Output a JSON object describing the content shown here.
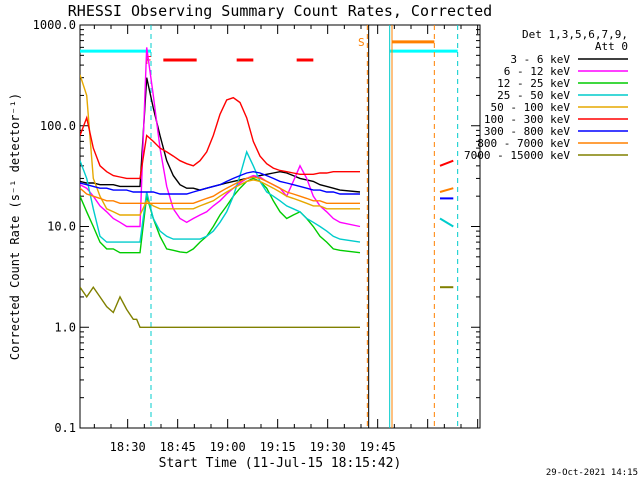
{
  "chart_data": {
    "type": "line",
    "title": "RHESSI Observing Summary Count Rates, Corrected",
    "xlabel": "Start Time (11-Jul-15 18:15:42)",
    "ylabel": "Corrected Count Rate (s⁻¹ detector⁻¹)",
    "yscale": "log",
    "ylim": [
      0.1,
      1000
    ],
    "xlim_minutes": [
      0,
      120
    ],
    "x_tick_labels": [
      "18:30",
      "18:45",
      "19:00",
      "19:15",
      "19:30",
      "19:45"
    ],
    "y_tick_labels": [
      "0.1",
      "1.0",
      "10.0",
      "100.0",
      "1000.0"
    ],
    "grid": false,
    "legend_header": [
      "Det 1,3,5,6,7,9,",
      "Att 0"
    ],
    "legend_position": "right",
    "footer_date": "29-Oct-2021 14:15",
    "flag_labels": {
      "flare": "F",
      "saa": "S"
    },
    "series": [
      {
        "name": "3 - 6 keV",
        "color": "#000000",
        "x": [
          0,
          2,
          4,
          6,
          8,
          10,
          12,
          14,
          16,
          17,
          18,
          20,
          22,
          24,
          26,
          28,
          30,
          32,
          34,
          36,
          38,
          40,
          42,
          44,
          46,
          48,
          50,
          52,
          54,
          56,
          58,
          60,
          62,
          64,
          66,
          68,
          70,
          72,
          74,
          76,
          78,
          84
        ],
        "y": [
          28,
          27,
          27,
          26,
          26,
          26,
          25,
          25,
          25,
          25,
          25,
          300,
          150,
          80,
          45,
          32,
          26,
          24,
          24,
          23,
          24,
          25,
          26,
          27,
          28,
          29,
          30,
          31,
          32,
          33,
          34,
          35,
          34,
          32,
          30,
          29,
          28,
          26,
          25,
          24,
          23,
          22
        ]
      },
      {
        "name": "6 - 12 keV",
        "color": "#ff00ff",
        "x": [
          0,
          2,
          4,
          6,
          8,
          10,
          12,
          14,
          16,
          17,
          18,
          20,
          22,
          24,
          26,
          28,
          30,
          32,
          34,
          36,
          38,
          40,
          42,
          44,
          46,
          48,
          50,
          52,
          54,
          56,
          58,
          60,
          62,
          64,
          66,
          68,
          70,
          72,
          74,
          76,
          78,
          84
        ],
        "y": [
          26,
          24,
          20,
          16,
          14,
          12,
          11,
          10,
          10,
          10,
          10,
          600,
          200,
          60,
          25,
          15,
          12,
          11,
          12,
          13,
          14,
          16,
          18,
          21,
          24,
          27,
          30,
          32,
          31,
          28,
          26,
          24,
          20,
          28,
          40,
          30,
          20,
          16,
          14,
          12,
          11,
          10
        ]
      },
      {
        "name": "12 - 25 keV",
        "color": "#00cc00",
        "x": [
          0,
          2,
          4,
          6,
          8,
          10,
          12,
          14,
          16,
          17,
          18,
          20,
          22,
          24,
          26,
          28,
          30,
          32,
          34,
          36,
          38,
          40,
          42,
          44,
          46,
          48,
          50,
          52,
          54,
          56,
          58,
          60,
          62,
          64,
          66,
          68,
          70,
          72,
          74,
          76,
          78,
          84
        ],
        "y": [
          20,
          14,
          10,
          7,
          6,
          6,
          5.5,
          5.5,
          5.5,
          5.5,
          5.5,
          20,
          12,
          8,
          6,
          5.8,
          5.6,
          5.5,
          6,
          7,
          8,
          10,
          13,
          16,
          20,
          24,
          28,
          30,
          28,
          24,
          18,
          14,
          12,
          13,
          14,
          12,
          10,
          8,
          7,
          6,
          5.8,
          5.5
        ]
      },
      {
        "name": "25 - 50 keV",
        "color": "#00cccc",
        "x": [
          0,
          2,
          4,
          6,
          8,
          10,
          12,
          14,
          16,
          17,
          18,
          20,
          22,
          24,
          26,
          28,
          30,
          32,
          34,
          36,
          38,
          40,
          42,
          44,
          46,
          48,
          50,
          52,
          54,
          56,
          58,
          60,
          62,
          64,
          66,
          68,
          70,
          72,
          74,
          76,
          78,
          84
        ],
        "y": [
          45,
          30,
          15,
          8,
          7,
          7,
          7,
          7,
          7,
          7,
          7,
          22,
          12,
          9,
          8,
          7.5,
          7.5,
          7.5,
          7.5,
          7.5,
          8,
          9,
          11,
          14,
          20,
          32,
          55,
          40,
          28,
          22,
          20,
          18,
          16,
          15,
          14,
          12,
          11,
          10,
          9,
          8,
          7.5,
          7
        ]
      },
      {
        "name": "50 - 100 keV",
        "color": "#e6a800",
        "x": [
          0,
          2,
          4,
          6,
          8,
          10,
          12,
          14,
          16,
          17,
          18,
          20,
          22,
          24,
          26,
          28,
          30,
          32,
          34,
          36,
          38,
          40,
          42,
          44,
          46,
          48,
          50,
          52,
          54,
          56,
          58,
          60,
          62,
          64,
          66,
          68,
          70,
          72,
          74,
          76,
          78,
          84
        ],
        "y": [
          320,
          200,
          30,
          20,
          15,
          14,
          13,
          13,
          13,
          13,
          13,
          18,
          16,
          15,
          15,
          15,
          15,
          15,
          15,
          16,
          17,
          18,
          20,
          22,
          24,
          26,
          28,
          29,
          28,
          26,
          24,
          22,
          20,
          19,
          18,
          17,
          16,
          16,
          15,
          15,
          15,
          15
        ]
      },
      {
        "name": "100 - 300 keV",
        "color": "#ff0000",
        "x": [
          0,
          2,
          4,
          6,
          8,
          10,
          12,
          14,
          16,
          17,
          18,
          20,
          22,
          24,
          26,
          28,
          30,
          32,
          34,
          36,
          38,
          40,
          42,
          44,
          46,
          48,
          50,
          52,
          54,
          56,
          58,
          60,
          62,
          64,
          66,
          68,
          70,
          72,
          74,
          76,
          78,
          84
        ],
        "y": [
          80,
          120,
          60,
          40,
          35,
          32,
          31,
          30,
          30,
          30,
          30,
          80,
          70,
          60,
          55,
          50,
          45,
          42,
          40,
          45,
          55,
          80,
          130,
          180,
          190,
          170,
          120,
          70,
          50,
          42,
          38,
          36,
          35,
          34,
          33,
          33,
          33,
          34,
          34,
          35,
          35,
          35
        ]
      },
      {
        "name": "300 - 800 keV",
        "color": "#0000ff",
        "x": [
          0,
          2,
          4,
          6,
          8,
          10,
          12,
          14,
          16,
          17,
          18,
          20,
          22,
          24,
          26,
          28,
          30,
          32,
          34,
          36,
          38,
          40,
          42,
          44,
          46,
          48,
          50,
          52,
          54,
          56,
          58,
          60,
          62,
          64,
          66,
          68,
          70,
          72,
          74,
          76,
          78,
          84
        ],
        "y": [
          27,
          26,
          25,
          24,
          24,
          23,
          23,
          23,
          22,
          22,
          22,
          22,
          22,
          21,
          21,
          21,
          21,
          21,
          22,
          23,
          24,
          25,
          26,
          28,
          30,
          32,
          34,
          35,
          34,
          32,
          30,
          28,
          27,
          26,
          25,
          24,
          23,
          23,
          22,
          22,
          21,
          21
        ]
      },
      {
        "name": "800 - 7000 keV",
        "color": "#ff8000",
        "x": [
          0,
          2,
          4,
          6,
          8,
          10,
          12,
          14,
          16,
          17,
          18,
          20,
          22,
          24,
          26,
          28,
          30,
          32,
          34,
          36,
          38,
          40,
          42,
          44,
          46,
          48,
          50,
          52,
          54,
          56,
          58,
          60,
          62,
          64,
          66,
          68,
          70,
          72,
          74,
          76,
          78,
          84
        ],
        "y": [
          24,
          21,
          20,
          19,
          18,
          18,
          17,
          17,
          17,
          17,
          17,
          17,
          17,
          17,
          17,
          17,
          17,
          17,
          17,
          18,
          19,
          20,
          22,
          24,
          26,
          28,
          30,
          31,
          30,
          28,
          26,
          24,
          22,
          21,
          20,
          19,
          18,
          18,
          17,
          17,
          17,
          17
        ]
      },
      {
        "name": "7000 - 15000 keV",
        "color": "#808000",
        "x": [
          0,
          2,
          4,
          6,
          8,
          10,
          12,
          14,
          16,
          17,
          18,
          20,
          22,
          24,
          26,
          28,
          30,
          32,
          34,
          36,
          38,
          40,
          42,
          44,
          46,
          48,
          50,
          52,
          54,
          56,
          58,
          60,
          62,
          64,
          66,
          68,
          70,
          72,
          74,
          76,
          78,
          84
        ],
        "y": [
          2.5,
          2,
          2.5,
          2,
          1.6,
          1.4,
          2,
          1.5,
          1.2,
          1.2,
          1.0,
          1.0,
          1.0,
          1.0,
          1.0,
          1.0,
          1.0,
          1.0,
          1.0,
          1.0,
          1.0,
          1.0,
          1.0,
          1.0,
          1.0,
          1.0,
          1.0,
          1.0,
          1.0,
          1.0,
          1.0,
          1.0,
          1.0,
          1.0,
          1.0,
          1.0,
          1.0,
          1.0,
          1.0,
          1.0,
          1.0,
          1.0
        ]
      }
    ],
    "late_segment": {
      "x": [
        108,
        112
      ],
      "values": {
        "100 - 300 keV": [
          40,
          45
        ],
        "800 - 7000 keV": [
          22,
          24
        ],
        "300 - 800 keV": [
          19,
          19
        ],
        "25 - 50 keV": [
          12,
          10
        ],
        "7000 - 15000 keV": [
          2.5,
          2.5
        ]
      }
    },
    "vertical_markers_minutes": {
      "cyan_dashed": [
        21.3,
        113.3
      ],
      "orange_dashed": [
        86.2,
        106.3
      ],
      "cyan_solid": [
        92.9
      ],
      "orange_solid": [
        93.6
      ],
      "black_solid": [
        86.6
      ]
    },
    "horizontal_segments": [
      {
        "label": "cyan-top-left",
        "color": "#00ffff",
        "x": [
          0,
          21.3
        ],
        "y": 550
      },
      {
        "label": "cyan-top-right",
        "color": "#00ffff",
        "x": [
          92.9,
          113.3
        ],
        "y": 550
      },
      {
        "label": "orange-top",
        "color": "#ff8000",
        "x": [
          93.6,
          106.3
        ],
        "y": 680
      },
      {
        "label": "red-flare-1",
        "color": "#ff0000",
        "x": [
          25,
          35
        ],
        "y": 450
      },
      {
        "label": "red-flare-2",
        "color": "#ff0000",
        "x": [
          47,
          52
        ],
        "y": 450
      },
      {
        "label": "red-flare-3",
        "color": "#ff0000",
        "x": [
          65,
          70
        ],
        "y": 450
      }
    ]
  }
}
